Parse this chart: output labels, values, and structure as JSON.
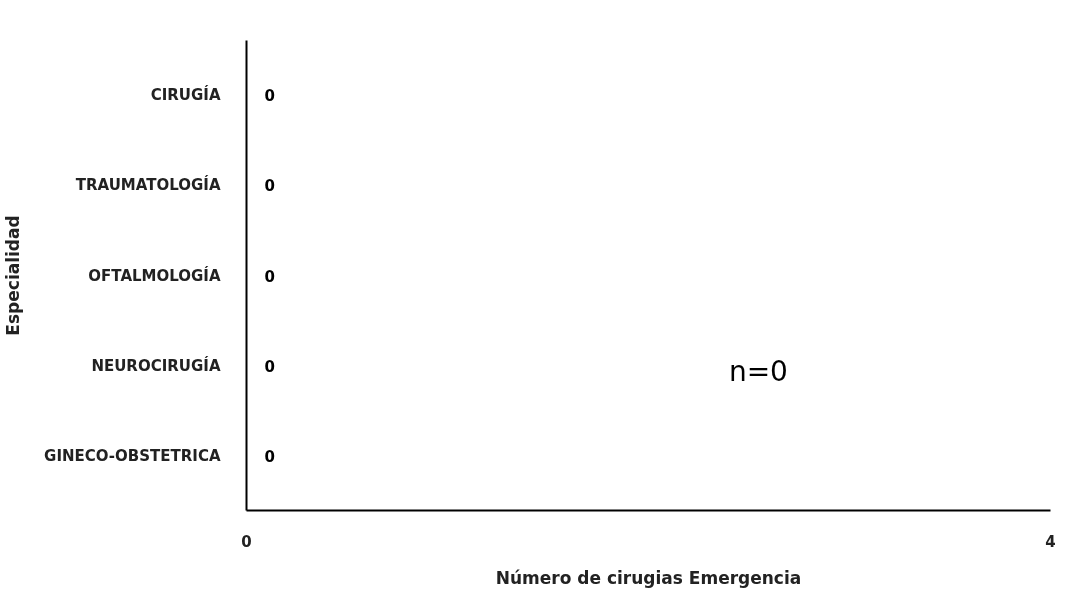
{
  "chart_data": {
    "type": "bar",
    "orientation": "horizontal",
    "categories": [
      "CIRUGÍA",
      "TRAUMATOLOGÍA",
      "OFTALMOLOGÍA",
      "NEUROCIRUGÍA",
      "GINECO-OBSTETRICA"
    ],
    "values": [
      0,
      0,
      0,
      0,
      0
    ],
    "xlim": [
      0,
      4
    ],
    "xticks": [
      0,
      4
    ],
    "xlabel": "Número de cirugias Emergencia",
    "ylabel": "Especialidad",
    "annotations": [
      "n=0"
    ],
    "data_labels": true,
    "grid": false
  }
}
